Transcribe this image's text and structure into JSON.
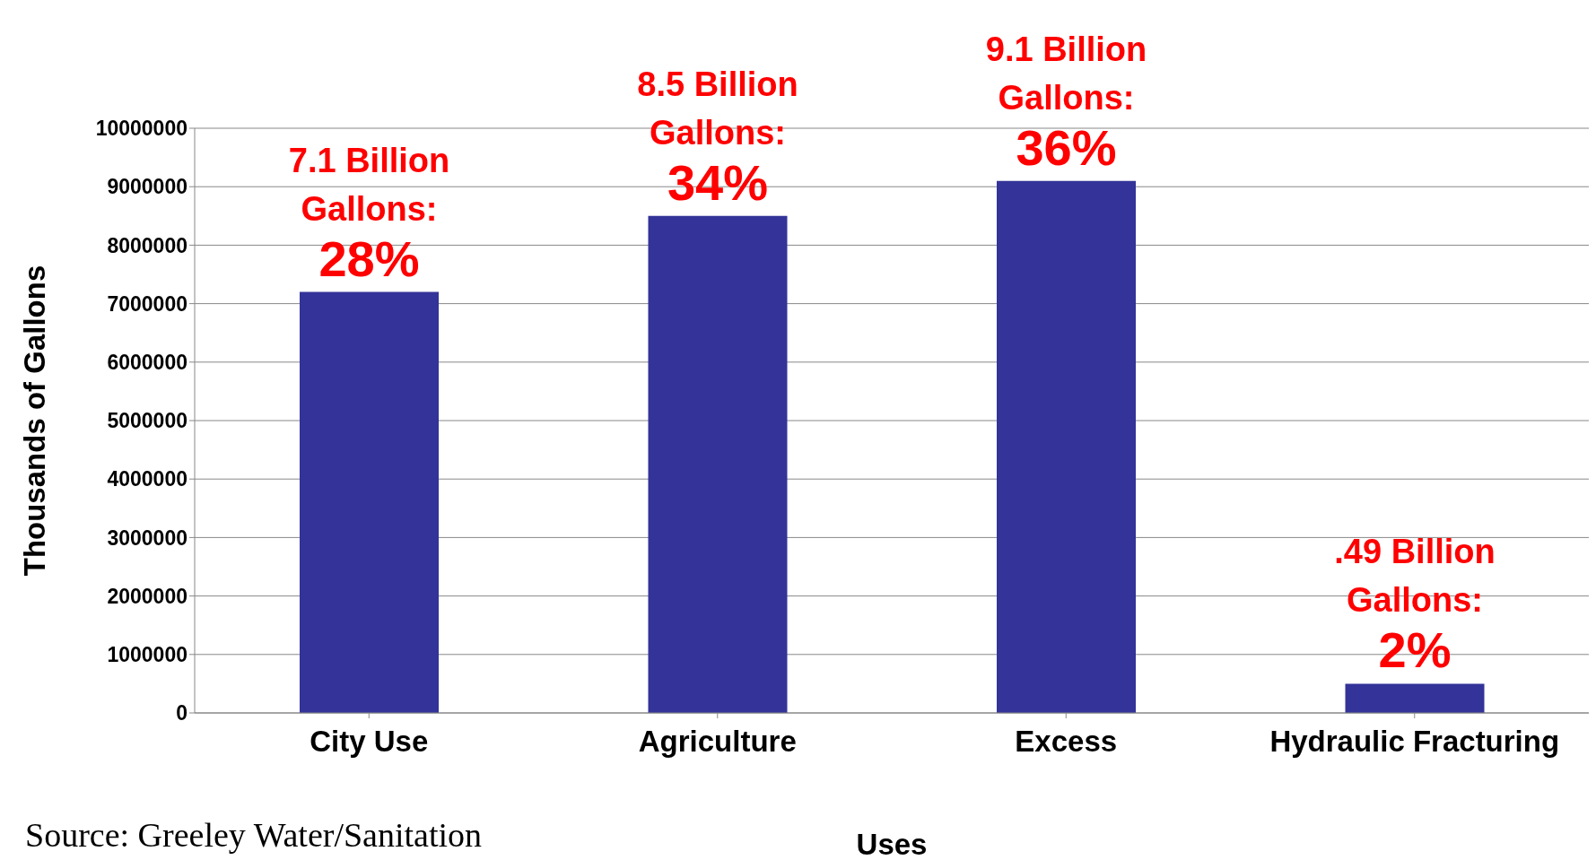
{
  "chart_data": {
    "type": "bar",
    "xlabel": "Uses",
    "ylabel": "Thousands of Gallons",
    "categories": [
      "City Use",
      "Agriculture",
      "Excess",
      "Hydraulic Fracturing"
    ],
    "values": [
      7200000,
      8500000,
      9100000,
      500000
    ],
    "color": "#333399",
    "ylim": [
      0,
      10000000
    ],
    "yticks": [
      0,
      1000000,
      2000000,
      3000000,
      4000000,
      5000000,
      6000000,
      7000000,
      8000000,
      9000000,
      10000000
    ],
    "grid": "y",
    "annotations": [
      {
        "text": "7.1 Billion\nGallons:\n28%",
        "x": "City Use",
        "y": 7200000
      },
      {
        "text": "8.5 Billion\nGallons:\n34%",
        "x": "Agriculture",
        "y": 8500000
      },
      {
        "text": "9.1 Billion\nGallons:\n36%",
        "x": "Excess",
        "y": 9100000
      },
      {
        "text": ".49 Billion\nGallons:\n2%",
        "x": "Hydraulic Fracturing",
        "y": 500000
      },
      "Source: Greeley Water/Sanitation"
    ]
  }
}
